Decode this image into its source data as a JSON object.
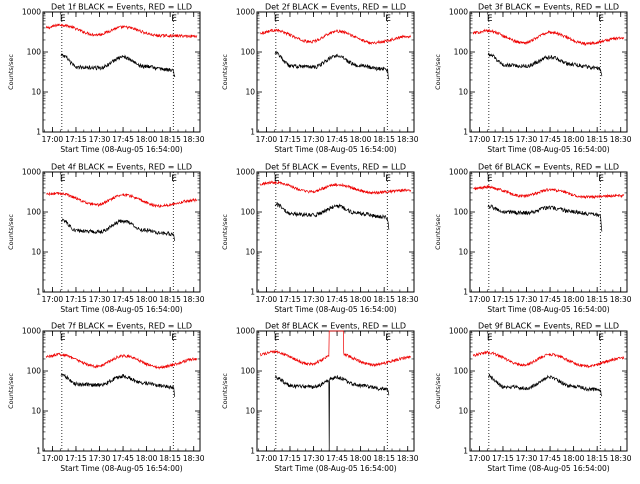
{
  "chart_data": [
    {
      "type": "line",
      "title": "Det 1f BLACK = Events, RED = LLD",
      "xlabel": "Start Time (08-Aug-05 16:54:00)",
      "ylabel": "Counts/sec",
      "x_tick_labels": [
        "17:00",
        "17:15",
        "17:30",
        "17:45",
        "18:00",
        "18:15",
        "18:30"
      ],
      "x_tick_minutes": [
        6,
        21,
        36,
        51,
        66,
        81,
        96
      ],
      "xlim": [
        0,
        100
      ],
      "y_scale": "log",
      "ylim": [
        1,
        1000
      ],
      "y_tick_labels": [
        "1",
        "10",
        "100",
        "1000"
      ],
      "markers": [
        {
          "label": "E",
          "minute": 12
        },
        {
          "label": "E",
          "minute": 83
        }
      ],
      "black": {
        "start": 11.5,
        "end": 84,
        "start_value": 85,
        "mid_value": 40,
        "peak_value": 75,
        "peak_minute": 51,
        "end_value": 22
      },
      "red": {
        "start": 2,
        "end": 98,
        "start_value": 400,
        "peak_value": 480,
        "mid_value": 270,
        "second_peak_value": 420,
        "end_value": 250
      }
    },
    {
      "type": "line",
      "title": "Det 2f BLACK = Events, RED = LLD",
      "xlabel": "Start Time (08-Aug-05 16:54:00)",
      "ylabel": "Counts/sec",
      "x_tick_labels": [
        "17:00",
        "17:15",
        "17:30",
        "17:45",
        "18:00",
        "18:15",
        "18:30"
      ],
      "x_tick_minutes": [
        6,
        21,
        36,
        51,
        66,
        81,
        96
      ],
      "xlim": [
        0,
        100
      ],
      "y_scale": "log",
      "ylim": [
        1,
        1000
      ],
      "y_tick_labels": [
        "1",
        "10",
        "100",
        "1000"
      ],
      "markers": [
        {
          "label": "E",
          "minute": 12
        },
        {
          "label": "E",
          "minute": 83
        }
      ],
      "black": {
        "start": 11.5,
        "end": 84,
        "start_value": 95,
        "mid_value": 42,
        "peak_value": 80,
        "peak_minute": 51,
        "end_value": 20
      },
      "red": {
        "start": 2,
        "end": 98,
        "start_value": 300,
        "peak_value": 350,
        "mid_value": 180,
        "second_peak_value": 330,
        "end_value": 250
      }
    },
    {
      "type": "line",
      "title": "Det 3f BLACK = Events, RED = LLD",
      "xlabel": "Start Time (08-Aug-05 16:54:00)",
      "ylabel": "Counts/sec",
      "x_tick_labels": [
        "17:00",
        "17:15",
        "17:30",
        "17:45",
        "18:00",
        "18:15",
        "18:30"
      ],
      "x_tick_minutes": [
        6,
        21,
        36,
        51,
        66,
        81,
        96
      ],
      "xlim": [
        0,
        100
      ],
      "y_scale": "log",
      "ylim": [
        1,
        1000
      ],
      "y_tick_labels": [
        "1",
        "10",
        "100",
        "1000"
      ],
      "markers": [
        {
          "label": "E",
          "minute": 12
        },
        {
          "label": "E",
          "minute": 83
        }
      ],
      "black": {
        "start": 11.5,
        "end": 84,
        "start_value": 90,
        "mid_value": 45,
        "peak_value": 75,
        "peak_minute": 51,
        "end_value": 25
      },
      "red": {
        "start": 2,
        "end": 98,
        "start_value": 300,
        "peak_value": 340,
        "mid_value": 170,
        "second_peak_value": 310,
        "end_value": 230
      }
    },
    {
      "type": "line",
      "title": "Det 4f BLACK = Events, RED = LLD",
      "xlabel": "Start Time (08-Aug-05 16:54:00)",
      "ylabel": "Counts/sec",
      "x_tick_labels": [
        "17:00",
        "17:15",
        "17:30",
        "17:45",
        "18:00",
        "18:15",
        "18:30"
      ],
      "x_tick_minutes": [
        6,
        21,
        36,
        51,
        66,
        81,
        96
      ],
      "xlim": [
        0,
        100
      ],
      "y_scale": "log",
      "ylim": [
        1,
        1000
      ],
      "y_tick_labels": [
        "1",
        "10",
        "100",
        "1000"
      ],
      "markers": [
        {
          "label": "E",
          "minute": 12
        },
        {
          "label": "E",
          "minute": 83
        }
      ],
      "black": {
        "start": 11.5,
        "end": 84,
        "start_value": 65,
        "mid_value": 32,
        "peak_value": 60,
        "peak_minute": 51,
        "end_value": 20
      },
      "red": {
        "start": 2,
        "end": 98,
        "start_value": 280,
        "peak_value": 290,
        "mid_value": 150,
        "second_peak_value": 270,
        "end_value": 200
      }
    },
    {
      "type": "line",
      "title": "Det 5f BLACK = Events, RED = LLD",
      "xlabel": "Start Time (08-Aug-05 16:54:00)",
      "ylabel": "Counts/sec",
      "x_tick_labels": [
        "17:00",
        "17:15",
        "17:30",
        "17:45",
        "18:00",
        "18:15",
        "18:30"
      ],
      "x_tick_minutes": [
        6,
        21,
        36,
        51,
        66,
        81,
        96
      ],
      "xlim": [
        0,
        100
      ],
      "y_scale": "log",
      "ylim": [
        1,
        1000
      ],
      "y_tick_labels": [
        "1",
        "10",
        "100",
        "1000"
      ],
      "markers": [
        {
          "label": "E",
          "minute": 12
        },
        {
          "label": "E",
          "minute": 83
        }
      ],
      "black": {
        "start": 11.5,
        "end": 84,
        "start_value": 160,
        "mid_value": 85,
        "peak_value": 140,
        "peak_minute": 51,
        "end_value": 40
      },
      "red": {
        "start": 2,
        "end": 98,
        "start_value": 500,
        "peak_value": 560,
        "mid_value": 320,
        "second_peak_value": 480,
        "end_value": 350
      }
    },
    {
      "type": "line",
      "title": "Det 6f BLACK = Events, RED = LLD",
      "xlabel": "Start Time (08-Aug-05 16:54:00)",
      "ylabel": "Counts/sec",
      "x_tick_labels": [
        "17:00",
        "17:15",
        "17:30",
        "17:45",
        "18:00",
        "18:15",
        "18:30"
      ],
      "x_tick_minutes": [
        6,
        21,
        36,
        51,
        66,
        81,
        96
      ],
      "xlim": [
        0,
        100
      ],
      "y_scale": "log",
      "ylim": [
        1,
        1000
      ],
      "y_tick_labels": [
        "1",
        "10",
        "100",
        "1000"
      ],
      "markers": [
        {
          "label": "E",
          "minute": 12
        },
        {
          "label": "E",
          "minute": 83
        }
      ],
      "black": {
        "start": 11.5,
        "end": 84,
        "start_value": 140,
        "mid_value": 95,
        "peak_value": 130,
        "peak_minute": 51,
        "end_value": 30
      },
      "red": {
        "start": 2,
        "end": 98,
        "start_value": 380,
        "peak_value": 420,
        "mid_value": 250,
        "second_peak_value": 360,
        "end_value": 260
      }
    },
    {
      "type": "line",
      "title": "Det 7f BLACK = Events, RED = LLD",
      "xlabel": "Start Time (08-Aug-05 16:54:00)",
      "ylabel": "Counts/sec",
      "x_tick_labels": [
        "17:00",
        "17:15",
        "17:30",
        "17:45",
        "18:00",
        "18:15",
        "18:30"
      ],
      "x_tick_minutes": [
        6,
        21,
        36,
        51,
        66,
        81,
        96
      ],
      "xlim": [
        0,
        100
      ],
      "y_scale": "log",
      "ylim": [
        1,
        1000
      ],
      "y_tick_labels": [
        "1",
        "10",
        "100",
        "1000"
      ],
      "markers": [
        {
          "label": "E",
          "minute": 12
        },
        {
          "label": "E",
          "minute": 83
        }
      ],
      "black": {
        "start": 11.5,
        "end": 84,
        "start_value": 80,
        "mid_value": 45,
        "peak_value": 75,
        "peak_minute": 51,
        "end_value": 22
      },
      "red": {
        "start": 2,
        "end": 98,
        "start_value": 230,
        "peak_value": 260,
        "mid_value": 130,
        "second_peak_value": 240,
        "end_value": 200
      }
    },
    {
      "type": "line",
      "title": "Det 8f BLACK = Events, RED = LLD",
      "xlabel": "Start Time (08-Aug-05 16:54:00)",
      "ylabel": "Counts/sec",
      "x_tick_labels": [
        "17:00",
        "17:15",
        "17:30",
        "17:45",
        "18:00",
        "18:15",
        "18:30"
      ],
      "x_tick_minutes": [
        6,
        21,
        36,
        51,
        66,
        81,
        96
      ],
      "xlim": [
        0,
        100
      ],
      "y_scale": "log",
      "ylim": [
        1,
        1000
      ],
      "y_tick_labels": [
        "1",
        "10",
        "100",
        "1000"
      ],
      "markers": [
        {
          "label": "E",
          "minute": 12
        },
        {
          "label": "E",
          "minute": 83
        }
      ],
      "black": {
        "start": 11.5,
        "end": 84,
        "start_value": 70,
        "mid_value": 40,
        "peak_value": 70,
        "peak_minute": 51,
        "end_value": 25,
        "dropout_minute": 46,
        "dropout_value": 1
      },
      "red": {
        "start": 2,
        "end": 98,
        "start_value": 260,
        "peak_value": 300,
        "mid_value": 150,
        "second_peak_value": 280,
        "end_value": 220,
        "spike_start_minute": 46,
        "spike_end_minute": 55,
        "spike_value": 1000
      }
    },
    {
      "type": "line",
      "title": "Det 9f BLACK = Events, RED = LLD",
      "xlabel": "Start Time (08-Aug-05 16:54:00)",
      "ylabel": "Counts/sec",
      "x_tick_labels": [
        "17:00",
        "17:15",
        "17:30",
        "17:45",
        "18:00",
        "18:15",
        "18:30"
      ],
      "x_tick_minutes": [
        6,
        21,
        36,
        51,
        66,
        81,
        96
      ],
      "xlim": [
        0,
        100
      ],
      "y_scale": "log",
      "ylim": [
        1,
        1000
      ],
      "y_tick_labels": [
        "1",
        "10",
        "100",
        "1000"
      ],
      "markers": [
        {
          "label": "E",
          "minute": 12
        },
        {
          "label": "E",
          "minute": 83
        }
      ],
      "black": {
        "start": 11.5,
        "end": 84,
        "start_value": 75,
        "mid_value": 38,
        "peak_value": 70,
        "peak_minute": 51,
        "end_value": 25
      },
      "red": {
        "start": 2,
        "end": 98,
        "start_value": 250,
        "peak_value": 290,
        "mid_value": 140,
        "second_peak_value": 260,
        "end_value": 210
      }
    }
  ]
}
